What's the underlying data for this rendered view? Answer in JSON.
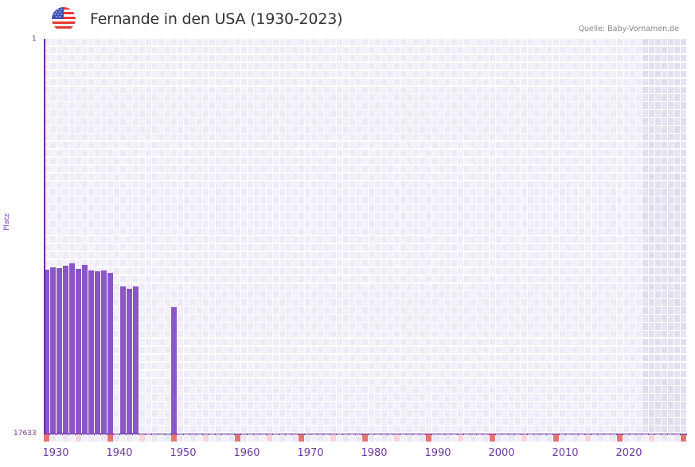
{
  "header": {
    "title": "Fernande in den USA (1930-2023)",
    "source": "Quelle: Baby-Vornamen.de",
    "flag_icon": "us-flag-icon"
  },
  "colors": {
    "bar": "#8c55c8",
    "axis": "#6a2ea0",
    "grid_a": "#efeaf8",
    "grid_b": "#f3f0fb",
    "future_shade": "#e4dfef",
    "decade_marker": "#e57373",
    "half_marker": "#f5d5dc"
  },
  "chart_data": {
    "type": "bar",
    "title": "Fernande in den USA (1930-2023)",
    "xlabel": "",
    "ylabel": "Platz",
    "ylim": [
      17633,
      1
    ],
    "y_inverted": true,
    "y_ticks": [
      "1",
      "17633"
    ],
    "x_range": [
      1928,
      2028
    ],
    "x_ticks": [
      "1930",
      "1940",
      "1950",
      "1960",
      "1970",
      "1980",
      "1990",
      "2000",
      "2010",
      "2020"
    ],
    "grid": true,
    "legend": null,
    "shaded_future_from": 2022,
    "categories": [
      1928,
      1929,
      1930,
      1931,
      1932,
      1933,
      1934,
      1935,
      1936,
      1937,
      1938,
      1940,
      1941,
      1942,
      1948
    ],
    "values": [
      10310,
      10200,
      10240,
      10130,
      10030,
      10270,
      10100,
      10340,
      10380,
      10340,
      10450,
      11060,
      11170,
      11060,
      11990
    ]
  },
  "axis": {
    "y_top_label": "1",
    "y_bottom_label": "17633",
    "y_title": "Platz"
  }
}
